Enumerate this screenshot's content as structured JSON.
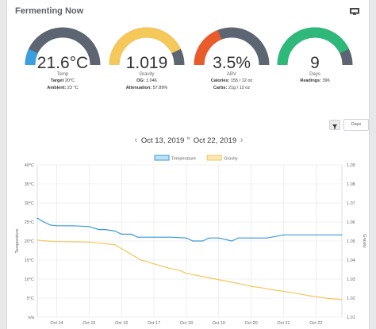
{
  "header": {
    "title": "Fermenting Now",
    "screen_icon": "monitor-icon"
  },
  "gauges": [
    {
      "value": "21.6°C",
      "label": "Temp",
      "color": "#3b9ede",
      "fill": 0.14,
      "details": [
        {
          "k": "Target",
          "v": "20°C"
        },
        {
          "k": "Ambient:",
          "v": "23 °C"
        }
      ]
    },
    {
      "value": "1.019",
      "label": "Gravity",
      "color": "#f5c85a",
      "fill": 0.86,
      "details": [
        {
          "k": "OG:",
          "v": "1.046"
        },
        {
          "k": "Attenuation:",
          "v": "57.89%"
        }
      ]
    },
    {
      "value": "3.5%",
      "label": "ABV",
      "color": "#e95b2b",
      "fill": 0.38,
      "details": [
        {
          "k": "Calories:",
          "v": "155 / 12 oz"
        },
        {
          "k": "Carbs:",
          "v": "21g / 12 oz"
        }
      ]
    },
    {
      "value": "9",
      "label": "Days",
      "color": "#2eb879",
      "fill": 0.86,
      "details": [
        {
          "k": "Readings:",
          "v": "396"
        }
      ]
    }
  ],
  "controls": {
    "filter_icon": "filter-icon",
    "range_label": "Days"
  },
  "date_range": {
    "from": "Oct 13, 2019",
    "to_word": "to",
    "to": "Oct 22, 2019",
    "prev_icon": "chevron-left-icon",
    "next_icon": "chevron-right-icon"
  },
  "chart_data": {
    "type": "line",
    "x_categories": [
      "Oct 14",
      "Oct 15",
      "Oct 16",
      "Oct 17",
      "Oct 18",
      "Oct 19",
      "Oct 20",
      "Oct 21",
      "Oct 22"
    ],
    "xlim": [
      13.4,
      22.8
    ],
    "ylabel": "Temperature",
    "y2label": "Gravity",
    "ylim": [
      0,
      40
    ],
    "y_ticks": [
      "n/a",
      "5°C",
      "10°C",
      "15°C",
      "20°C",
      "25°C",
      "30°C",
      "35°C",
      "40°C"
    ],
    "y2lim": [
      1.01,
      1.09
    ],
    "y2_ticks": [
      "1.01",
      "1.02",
      "1.03",
      "1.04",
      "1.05",
      "1.06",
      "1.07",
      "1.08",
      "1.09"
    ],
    "grid": true,
    "legend_position": "top",
    "series": [
      {
        "name": "Temperature",
        "axis": "left",
        "color": "#3a9ad9",
        "fill": "#bfe0f5",
        "x": [
          13.4,
          13.6,
          13.8,
          14.0,
          14.5,
          15.0,
          15.3,
          15.5,
          15.8,
          16.0,
          16.3,
          16.5,
          17.0,
          17.5,
          18.0,
          18.2,
          18.5,
          18.7,
          19.0,
          19.4,
          19.6,
          20.0,
          20.5,
          21.0,
          21.5,
          22.0,
          22.5,
          22.8
        ],
        "y": [
          26.0,
          25.0,
          24.2,
          24.0,
          24.0,
          23.8,
          23.0,
          23.0,
          22.6,
          21.8,
          21.8,
          21.0,
          21.0,
          21.0,
          20.8,
          20.0,
          20.0,
          20.8,
          20.8,
          20.0,
          20.8,
          20.8,
          20.8,
          21.6,
          21.6,
          21.6,
          21.6,
          21.6
        ]
      },
      {
        "name": "Gravity",
        "axis": "right",
        "color": "#f2c75c",
        "fill": "#fbe7b5",
        "x": [
          13.4,
          13.7,
          14.0,
          14.5,
          15.0,
          15.5,
          15.8,
          16.0,
          16.3,
          16.6,
          16.9,
          17.2,
          17.5,
          17.8,
          18.0,
          18.3,
          18.6,
          18.9,
          19.2,
          19.5,
          19.8,
          20.0,
          20.3,
          20.6,
          20.9,
          21.2,
          21.5,
          21.8,
          22.1,
          22.4,
          22.8
        ],
        "y": [
          1.0505,
          1.05,
          1.0497,
          1.0496,
          1.0494,
          1.0486,
          1.048,
          1.046,
          1.043,
          1.04,
          1.0385,
          1.037,
          1.0355,
          1.0345,
          1.033,
          1.032,
          1.031,
          1.03,
          1.029,
          1.028,
          1.027,
          1.0262,
          1.0255,
          1.0245,
          1.0238,
          1.023,
          1.0222,
          1.0212,
          1.0205,
          1.0198,
          1.0192
        ]
      }
    ]
  }
}
